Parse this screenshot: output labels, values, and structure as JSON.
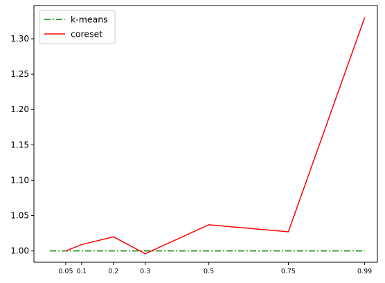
{
  "chart_data": {
    "type": "line",
    "x": [
      0.05,
      0.1,
      0.2,
      0.3,
      0.5,
      0.75,
      0.99
    ],
    "x_tick_labels": [
      "0.05",
      "0.1",
      "0.2",
      "0.3",
      "0.5",
      "0.75",
      "0.99"
    ],
    "x_lim": [
      -0.05,
      1.03
    ],
    "y_ticks": [
      1.0,
      1.05,
      1.1,
      1.15,
      1.2,
      1.25,
      1.3
    ],
    "y_tick_labels": [
      "1.00",
      "1.05",
      "1.10",
      "1.15",
      "1.20",
      "1.25",
      "1.30"
    ],
    "y_lim": [
      0.984,
      1.347
    ],
    "grid": false,
    "legend_position": "top-left",
    "series": [
      {
        "name": "k-means",
        "color": "#008000",
        "line_style": "dash-dot",
        "x": [
          0.0,
          0.99
        ],
        "values": [
          1.0,
          1.0
        ]
      },
      {
        "name": "coreset",
        "color": "#ff0000",
        "line_style": "solid",
        "x": [
          0.05,
          0.1,
          0.2,
          0.3,
          0.5,
          0.75,
          0.99
        ],
        "values": [
          1.0,
          1.009,
          1.02,
          0.996,
          1.037,
          1.027,
          1.33
        ]
      }
    ]
  }
}
